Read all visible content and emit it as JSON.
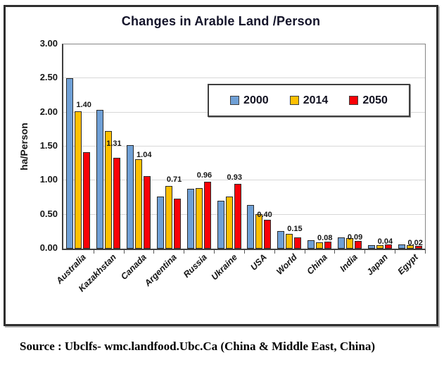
{
  "window": {
    "source_caption": "Source : Ubclfs- wmc.landfood.Ubc.Ca (China & Middle East, China)"
  },
  "chart_data": {
    "type": "bar",
    "title": "Changes in Arable Land /Person",
    "ylabel": "ha/Person",
    "xlabel": "",
    "ylim": [
      0,
      3.0
    ],
    "yticks": [
      "0.00",
      "0.50",
      "1.00",
      "1.50",
      "2.00",
      "2.50",
      "3.00"
    ],
    "grid": true,
    "legend_position": "top-right-inside",
    "categories": [
      "Australia",
      "Kazakhstan",
      "Canada",
      "Argentina",
      "Russia",
      "Ukraine",
      "USA",
      "World",
      "China",
      "India",
      "Japan",
      "Egypt"
    ],
    "series": [
      {
        "name": "2000",
        "color": "#6FA0D6",
        "values": [
          2.48,
          2.02,
          1.5,
          0.75,
          0.86,
          0.68,
          0.62,
          0.24,
          0.1,
          0.15,
          0.03,
          0.04
        ]
      },
      {
        "name": "2014",
        "color": "#FFC001",
        "values": [
          2.0,
          1.71,
          1.29,
          0.9,
          0.87,
          0.74,
          0.49,
          0.2,
          0.07,
          0.13,
          0.03,
          0.03
        ]
      },
      {
        "name": "2050",
        "color": "#FA0007",
        "values": [
          1.4,
          1.31,
          1.04,
          0.71,
          0.96,
          0.93,
          0.4,
          0.15,
          0.08,
          0.09,
          0.04,
          0.02
        ]
      }
    ],
    "bar_value_labels": {
      "series": "2050",
      "values": [
        "1.40",
        "1.31",
        "1.04",
        "0.71",
        "0.96",
        "0.93",
        "0.40",
        "0.15",
        "0.08",
        "0.09",
        "0.04",
        "0.02"
      ]
    },
    "colors": {
      "series_2000": "#6FA0D6",
      "series_2014": "#FFC001",
      "series_2050": "#FA0007",
      "grid": "#D8D8D8",
      "axis": "#3F3F3F",
      "bar_outline": "#2B2B2B",
      "frame_border": "#2E2E2E",
      "label_text": "#151515"
    }
  }
}
